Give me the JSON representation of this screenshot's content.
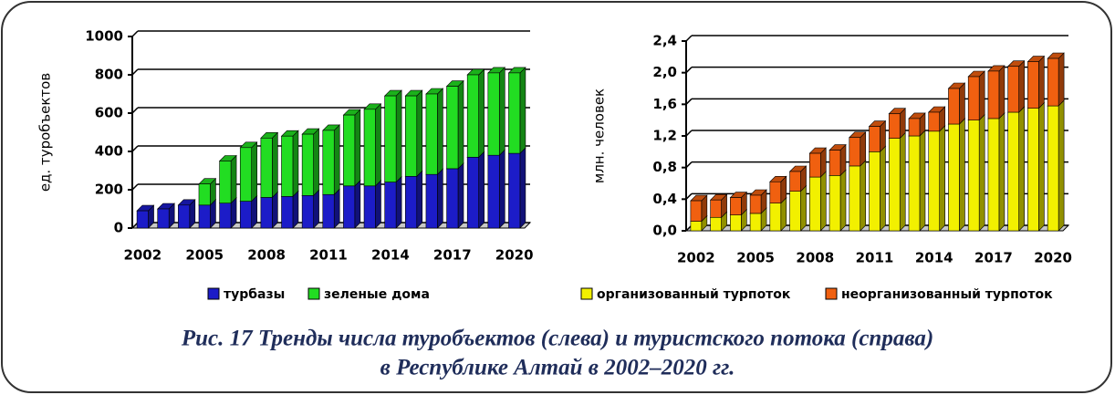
{
  "chart_data": [
    {
      "type": "bar",
      "stacked": true,
      "ylabel": "ед. туробъектов",
      "categories": [
        "2002",
        null,
        null,
        "2005",
        null,
        null,
        "2008",
        null,
        null,
        "2011",
        null,
        null,
        "2014",
        null,
        null,
        "2017",
        null,
        null,
        "2020"
      ],
      "series": [
        {
          "name": "турбазы",
          "color": "#1c1cc8",
          "values": [
            90,
            100,
            120,
            120,
            130,
            140,
            160,
            165,
            170,
            175,
            220,
            220,
            240,
            270,
            280,
            310,
            370,
            380,
            390
          ]
        },
        {
          "name": "зеленые дома",
          "color": "#22dd22",
          "values": [
            0,
            0,
            0,
            110,
            220,
            280,
            310,
            315,
            320,
            335,
            370,
            400,
            450,
            420,
            420,
            430,
            430,
            430,
            420
          ]
        }
      ],
      "ylim": [
        0,
        1000
      ],
      "yticks": [
        0,
        200,
        400,
        600,
        800,
        1000
      ],
      "grid": true,
      "legend": "bottom"
    },
    {
      "type": "bar",
      "stacked": true,
      "ylabel": "млн. человек",
      "categories": [
        "2002",
        null,
        null,
        "2005",
        null,
        null,
        "2008",
        null,
        null,
        "2011",
        null,
        null,
        "2014",
        null,
        null,
        "2017",
        null,
        null,
        "2020"
      ],
      "series": [
        {
          "name": "организованный турпоток",
          "color": "#f2f000",
          "values": [
            0.12,
            0.17,
            0.2,
            0.22,
            0.35,
            0.5,
            0.68,
            0.7,
            0.82,
            1.0,
            1.17,
            1.2,
            1.26,
            1.35,
            1.4,
            1.42,
            1.5,
            1.55,
            1.58
          ]
        },
        {
          "name": "неорганизованный турпоток",
          "color": "#f06010",
          "values": [
            0.26,
            0.22,
            0.22,
            0.23,
            0.27,
            0.25,
            0.3,
            0.32,
            0.36,
            0.32,
            0.31,
            0.22,
            0.24,
            0.45,
            0.55,
            0.6,
            0.58,
            0.59,
            0.6
          ]
        }
      ],
      "ylim": [
        0,
        2.4
      ],
      "yticks": [
        {
          "value": 0,
          "label": "0,0"
        },
        {
          "value": 0.4,
          "label": "0,4"
        },
        {
          "value": 0.8,
          "label": "0,8"
        },
        {
          "value": 1.2,
          "label": "1,2"
        },
        {
          "value": 1.6,
          "label": "1,6"
        },
        {
          "value": 2.0,
          "label": "2,0"
        },
        {
          "value": 2.4,
          "label": "2,4"
        }
      ],
      "grid": true,
      "legend": "bottom"
    }
  ],
  "caption": [
    "Рис. 17 Тренды числа туробъектов (слева) и туристского потока (справа)",
    "в Республике Алтай в 2002–2020 гг."
  ]
}
